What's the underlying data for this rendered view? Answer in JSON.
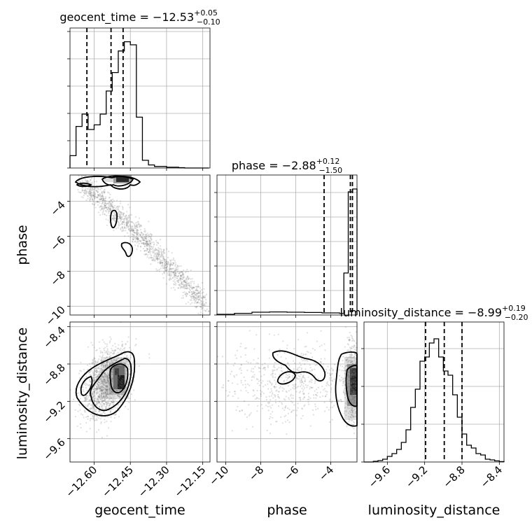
{
  "chart_data": {
    "type": "corner",
    "params": [
      {
        "name": "geocent_time",
        "label": "geocent_time",
        "range": [
          -12.7,
          -12.12
        ],
        "ticks": [
          -12.6,
          -12.45,
          -12.3,
          -12.15
        ],
        "tick_labels": [
          "−12.60",
          "−12.45",
          "−12.30",
          "−12.15"
        ],
        "title_prefix": "geocent_time = ",
        "title_value": "−12.53",
        "title_plus": "+0.05",
        "title_minus": "−0.10",
        "median": -12.53,
        "plus": 0.05,
        "minus": 0.1,
        "hist_edges": [
          -12.7,
          -12.675,
          -12.65,
          -12.625,
          -12.6,
          -12.575,
          -12.55,
          -12.525,
          -12.5,
          -12.475,
          -12.45,
          -12.425,
          -12.4,
          -12.375,
          -12.35,
          -12.325,
          -12.3,
          -12.275,
          -12.25,
          -12.225,
          -12.2,
          -12.175,
          -12.15,
          -12.125
        ],
        "hist_counts": [
          0.08,
          0.27,
          0.35,
          0.25,
          0.28,
          0.35,
          0.5,
          0.62,
          0.76,
          0.82,
          0.8,
          0.33,
          0.05,
          0.02,
          0.01,
          0.01,
          0.005,
          0.005,
          0.002,
          0,
          0,
          0,
          0
        ]
      },
      {
        "name": "phase",
        "label": "phase",
        "range": [
          -10.5,
          -2.5
        ],
        "ticks": [
          -10,
          -8,
          -6,
          -4
        ],
        "tick_labels": [
          "−10",
          "−8",
          "−6",
          "−4"
        ],
        "title_prefix": "phase = ",
        "title_value": "−2.88",
        "title_plus": "+0.12",
        "title_minus": "−1.50",
        "median": -2.88,
        "plus": 0.12,
        "minus": 1.5
      },
      {
        "name": "luminosity_distance",
        "label": "luminosity_distance",
        "range": [
          -9.85,
          -8.35
        ],
        "ticks": [
          -9.6,
          -9.2,
          -8.8,
          -8.4
        ],
        "tick_labels": [
          "−9.6",
          "−9.2",
          "−8.8",
          "−8.4"
        ],
        "title_prefix": "luminosity_distance = ",
        "title_value": "−8.99",
        "title_plus": "+0.19",
        "title_minus": "−0.20",
        "median": -8.99,
        "plus": 0.19,
        "minus": 0.2,
        "hist_edges": [
          -9.85,
          -9.8,
          -9.75,
          -9.7,
          -9.65,
          -9.6,
          -9.55,
          -9.5,
          -9.45,
          -9.4,
          -9.35,
          -9.3,
          -9.25,
          -9.2,
          -9.15,
          -9.1,
          -9.05,
          -9.0,
          -8.95,
          -8.9,
          -8.85,
          -8.8,
          -8.75,
          -8.7,
          -8.65,
          -8.6,
          -8.55,
          -8.5,
          -8.45,
          -8.4,
          -8.35
        ],
        "hist_counts": [
          0,
          0,
          0.005,
          0.01,
          0.02,
          0.04,
          0.06,
          0.09,
          0.14,
          0.23,
          0.39,
          0.52,
          0.72,
          0.75,
          0.85,
          0.88,
          0.75,
          0.65,
          0.62,
          0.48,
          0.32,
          0.2,
          0.12,
          0.1,
          0.06,
          0.05,
          0.02,
          0.015,
          0.008,
          0.003
        ]
      }
    ],
    "y_ticks": {
      "phase": {
        "ticks": [
          -10,
          -8,
          -6,
          -4
        ],
        "tick_labels": [
          "−10",
          "−8",
          "−6",
          "−4"
        ]
      },
      "luminosity_distance": {
        "ticks": [
          -9.6,
          -9.2,
          -8.8,
          -8.4
        ],
        "tick_labels": [
          "−9.6",
          "−9.2",
          "−8.8",
          "−8.4"
        ]
      }
    },
    "grid": true
  }
}
